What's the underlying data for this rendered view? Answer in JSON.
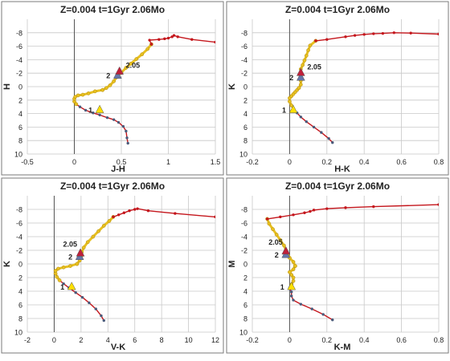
{
  "figure_colors": {
    "track": "#c4161c",
    "early": "#4a5a7a",
    "rgb": "#e8c020",
    "tip": "#5a8a4a",
    "marker_yellow": "#ffe000",
    "marker_red": "#c0203a",
    "marker_blue": "#6677aa",
    "grid": "#c8c8c8",
    "frame": "#7a7a7a"
  },
  "chart_data": [
    {
      "type": "line",
      "title": "Z=0.004  t=1Gyr 2.06Mo",
      "xlabel": "J-H",
      "ylabel": "H",
      "xlim": [
        -0.5,
        1.5
      ],
      "ylim": [
        10,
        -10
      ],
      "xticks": [
        "-0.5",
        "0",
        "0.5",
        "1",
        "1.5"
      ],
      "yticks": [
        "-8",
        "-6",
        "-4",
        "-2",
        "0",
        "2",
        "4",
        "6",
        "8",
        "10"
      ],
      "grid": true,
      "series": [
        {
          "role": "main-sequence",
          "points": [
            [
              0.57,
              8.4
            ],
            [
              0.56,
              7.6
            ],
            [
              0.55,
              6.6
            ],
            [
              0.52,
              5.9
            ],
            [
              0.47,
              5.3
            ],
            [
              0.42,
              4.9
            ],
            [
              0.35,
              4.6
            ],
            [
              0.27,
              4.2
            ],
            [
              0.2,
              3.9
            ],
            [
              0.12,
              3.5
            ],
            [
              0.06,
              3.0
            ],
            [
              0.02,
              2.6
            ]
          ]
        },
        {
          "role": "turnoff",
          "points": [
            [
              0.02,
              2.6
            ],
            [
              0.0,
              2.2
            ],
            [
              0.0,
              1.8
            ],
            [
              0.01,
              1.5
            ],
            [
              0.04,
              1.3
            ],
            [
              0.09,
              1.2
            ],
            [
              0.15,
              1.0
            ],
            [
              0.22,
              0.7
            ],
            [
              0.3,
              0.5
            ]
          ]
        },
        {
          "role": "giant-branch",
          "points": [
            [
              0.3,
              0.5
            ],
            [
              0.34,
              0.2
            ],
            [
              0.38,
              -0.2
            ],
            [
              0.42,
              -0.8
            ],
            [
              0.45,
              -1.4
            ],
            [
              0.5,
              -2.1
            ],
            [
              0.55,
              -2.8
            ],
            [
              0.6,
              -3.4
            ],
            [
              0.66,
              -4.1
            ],
            [
              0.72,
              -4.8
            ],
            [
              0.78,
              -5.6
            ],
            [
              0.82,
              -6.3
            ]
          ]
        },
        {
          "role": "agb",
          "points": [
            [
              0.82,
              -6.3
            ],
            [
              0.8,
              -6.9
            ],
            [
              0.9,
              -7.0
            ],
            [
              0.96,
              -7.1
            ],
            [
              1.0,
              -7.2
            ],
            [
              1.04,
              -7.4
            ],
            [
              1.06,
              -7.6
            ],
            [
              1.1,
              -7.4
            ],
            [
              1.25,
              -7.0
            ],
            [
              1.5,
              -6.6
            ]
          ]
        }
      ],
      "markers": [
        {
          "label": "1",
          "x": 0.27,
          "y": 3.4,
          "shape": "triangle",
          "color": "yellow"
        },
        {
          "label": "2",
          "x": 0.46,
          "y": -1.7,
          "shape": "triangle",
          "color": "blue"
        },
        {
          "label": "2.05",
          "x": 0.48,
          "y": -2.3,
          "shape": "triangle",
          "color": "red"
        }
      ]
    },
    {
      "type": "line",
      "title": "Z=0.004  t=1Gyr 2.06Mo",
      "xlabel": "H-K",
      "ylabel": "K",
      "xlim": [
        -0.2,
        0.8
      ],
      "ylim": [
        10,
        -10
      ],
      "xticks": [
        "-0.2",
        "0",
        "0.2",
        "0.4",
        "0.6",
        "0.8"
      ],
      "yticks": [
        "-8",
        "-6",
        "-4",
        "-2",
        "0",
        "2",
        "4",
        "6",
        "8",
        "10"
      ],
      "grid": true,
      "series": [
        {
          "role": "main-sequence",
          "points": [
            [
              0.23,
              8.3
            ],
            [
              0.21,
              7.7
            ],
            [
              0.17,
              6.8
            ],
            [
              0.13,
              6.0
            ],
            [
              0.09,
              5.2
            ],
            [
              0.06,
              4.5
            ],
            [
              0.04,
              3.9
            ],
            [
              0.02,
              3.4
            ],
            [
              0.01,
              2.8
            ]
          ]
        },
        {
          "role": "turnoff",
          "points": [
            [
              0.01,
              2.8
            ],
            [
              0.0,
              2.2
            ],
            [
              0.0,
              1.7
            ],
            [
              0.01,
              1.4
            ],
            [
              0.02,
              1.1
            ],
            [
              0.03,
              0.8
            ],
            [
              0.04,
              0.5
            ],
            [
              0.05,
              0.2
            ]
          ]
        },
        {
          "role": "giant-branch",
          "points": [
            [
              0.05,
              0.2
            ],
            [
              0.06,
              -0.3
            ],
            [
              0.06,
              -0.9
            ],
            [
              0.06,
              -1.4
            ],
            [
              0.06,
              -2.0
            ],
            [
              0.06,
              -2.6
            ],
            [
              0.07,
              -3.2
            ],
            [
              0.08,
              -3.9
            ],
            [
              0.09,
              -4.6
            ],
            [
              0.1,
              -5.4
            ],
            [
              0.11,
              -6.1
            ],
            [
              0.14,
              -6.8
            ]
          ]
        },
        {
          "role": "agb",
          "points": [
            [
              0.14,
              -6.8
            ],
            [
              0.2,
              -7.0
            ],
            [
              0.3,
              -7.4
            ],
            [
              0.35,
              -7.6
            ],
            [
              0.4,
              -7.75
            ],
            [
              0.45,
              -7.85
            ],
            [
              0.5,
              -7.9
            ],
            [
              0.56,
              -8.0
            ],
            [
              0.65,
              -7.95
            ],
            [
              0.8,
              -7.8
            ]
          ]
        }
      ],
      "markers": [
        {
          "label": "1",
          "x": 0.02,
          "y": 3.4,
          "shape": "triangle",
          "color": "yellow"
        },
        {
          "label": "2",
          "x": 0.06,
          "y": -1.4,
          "shape": "triangle",
          "color": "blue"
        },
        {
          "label": "2.05",
          "x": 0.06,
          "y": -2.1,
          "shape": "triangle",
          "color": "red"
        }
      ]
    },
    {
      "type": "line",
      "title": "Z=0.004  t=1Gyr 2.06Mo",
      "xlabel": "V-K",
      "ylabel": "K",
      "xlim": [
        -2,
        12
      ],
      "ylim": [
        10,
        -10
      ],
      "xticks": [
        "-2",
        "0",
        "2",
        "4",
        "6",
        "8",
        "10",
        "12"
      ],
      "yticks": [
        "-8",
        "-6",
        "-4",
        "-2",
        "0",
        "2",
        "4",
        "6",
        "8",
        "10"
      ],
      "grid": true,
      "series": [
        {
          "role": "main-sequence",
          "points": [
            [
              3.7,
              8.3
            ],
            [
              3.5,
              7.6
            ],
            [
              3.1,
              6.6
            ],
            [
              2.6,
              5.7
            ],
            [
              2.1,
              4.9
            ],
            [
              1.6,
              4.2
            ],
            [
              1.1,
              3.5
            ],
            [
              0.7,
              2.9
            ],
            [
              0.4,
              2.4
            ]
          ]
        },
        {
          "role": "turnoff",
          "points": [
            [
              0.4,
              2.4
            ],
            [
              0.2,
              1.9
            ],
            [
              0.1,
              1.4
            ],
            [
              0.1,
              1.0
            ],
            [
              0.3,
              0.7
            ],
            [
              0.7,
              0.5
            ],
            [
              1.2,
              0.3
            ],
            [
              1.7,
              0.0
            ]
          ]
        },
        {
          "role": "giant-branch",
          "points": [
            [
              1.7,
              0.0
            ],
            [
              1.9,
              -0.5
            ],
            [
              2.0,
              -1.1
            ],
            [
              2.05,
              -1.7
            ],
            [
              2.2,
              -2.4
            ],
            [
              2.5,
              -3.2
            ],
            [
              2.9,
              -4.0
            ],
            [
              3.3,
              -4.8
            ],
            [
              3.7,
              -5.6
            ],
            [
              4.1,
              -6.3
            ],
            [
              4.4,
              -6.9
            ]
          ]
        },
        {
          "role": "agb",
          "points": [
            [
              4.4,
              -6.9
            ],
            [
              4.8,
              -7.2
            ],
            [
              5.2,
              -7.5
            ],
            [
              5.6,
              -7.8
            ],
            [
              6.0,
              -8.0
            ],
            [
              6.2,
              -8.1
            ],
            [
              7.0,
              -7.8
            ],
            [
              9.0,
              -7.4
            ],
            [
              12.0,
              -6.9
            ]
          ]
        }
      ],
      "markers": [
        {
          "label": "1",
          "x": 1.3,
          "y": 3.3,
          "shape": "triangle",
          "color": "yellow"
        },
        {
          "label": "2",
          "x": 1.9,
          "y": -1.1,
          "shape": "triangle",
          "color": "blue"
        },
        {
          "label": "2.05",
          "x": 1.95,
          "y": -1.6,
          "shape": "triangle",
          "color": "red"
        }
      ]
    },
    {
      "type": "line",
      "title": "Z=0.004  t=1Gyr 2.06Mo",
      "xlabel": "K-M",
      "ylabel": "M",
      "xlim": [
        -0.2,
        0.8
      ],
      "ylim": [
        10,
        -10
      ],
      "xticks": [
        "-0.2",
        "0",
        "0.2",
        "0.4",
        "0.6",
        "0.8"
      ],
      "yticks": [
        "-8",
        "-6",
        "-4",
        "-2",
        "0",
        "2",
        "4",
        "6",
        "8",
        "10"
      ],
      "grid": true,
      "series": [
        {
          "role": "main-sequence",
          "points": [
            [
              0.23,
              8.2
            ],
            [
              0.18,
              7.4
            ],
            [
              0.12,
              6.6
            ],
            [
              0.06,
              5.9
            ],
            [
              0.02,
              5.3
            ],
            [
              0.01,
              4.7
            ],
            [
              0.01,
              4.1
            ],
            [
              0.0,
              3.5
            ],
            [
              0.01,
              3.0
            ]
          ]
        },
        {
          "role": "turnoff",
          "points": [
            [
              0.01,
              3.0
            ],
            [
              0.02,
              2.5
            ],
            [
              0.02,
              2.0
            ],
            [
              0.01,
              1.6
            ],
            [
              0.0,
              1.2
            ],
            [
              0.02,
              0.8
            ],
            [
              0.03,
              0.3
            ]
          ]
        },
        {
          "role": "giant-branch",
          "points": [
            [
              0.03,
              0.3
            ],
            [
              0.02,
              -0.3
            ],
            [
              0.0,
              -0.9
            ],
            [
              -0.01,
              -1.4
            ],
            [
              -0.02,
              -2.0
            ],
            [
              -0.03,
              -2.7
            ],
            [
              -0.05,
              -3.5
            ],
            [
              -0.07,
              -4.3
            ],
            [
              -0.09,
              -5.1
            ],
            [
              -0.11,
              -5.9
            ],
            [
              -0.12,
              -6.6
            ]
          ]
        },
        {
          "role": "agb",
          "points": [
            [
              -0.12,
              -6.6
            ],
            [
              -0.05,
              -6.9
            ],
            [
              0.02,
              -7.2
            ],
            [
              0.08,
              -7.5
            ],
            [
              0.11,
              -7.7
            ],
            [
              0.13,
              -7.9
            ],
            [
              0.2,
              -8.1
            ],
            [
              0.3,
              -8.25
            ],
            [
              0.45,
              -8.4
            ],
            [
              0.8,
              -8.7
            ]
          ]
        }
      ],
      "markers": [
        {
          "label": "1",
          "x": 0.01,
          "y": 3.3,
          "shape": "triangle",
          "color": "yellow"
        },
        {
          "label": "2",
          "x": -0.02,
          "y": -1.4,
          "shape": "triangle",
          "color": "blue"
        },
        {
          "label": "2.05",
          "x": -0.02,
          "y": -1.9,
          "shape": "triangle",
          "color": "red"
        }
      ]
    }
  ]
}
